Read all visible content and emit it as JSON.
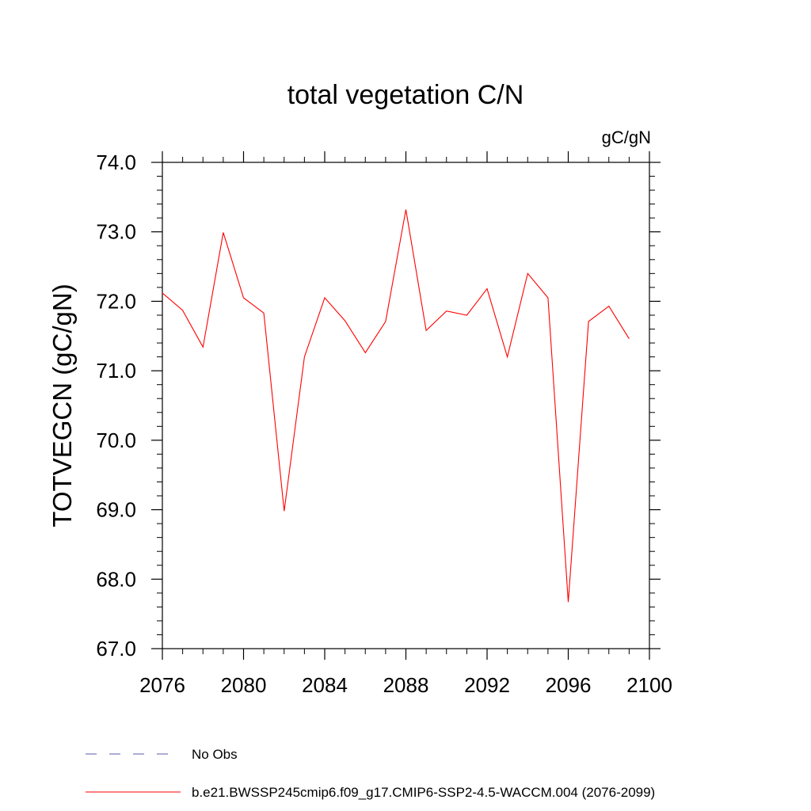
{
  "chart_data": {
    "type": "line",
    "title": "total vegetation C/N",
    "units": "gC/gN",
    "ylabel": "TOTVEGCN  (gC/gN)",
    "xlabel": "",
    "xlim": [
      2076,
      2100
    ],
    "ylim": [
      67.0,
      74.0
    ],
    "x_ticks": [
      2076,
      2080,
      2084,
      2088,
      2092,
      2096,
      2100
    ],
    "x_tick_labels": [
      "2076",
      "2080",
      "2084",
      "2088",
      "2092",
      "2096",
      "2100"
    ],
    "y_ticks": [
      67.0,
      68.0,
      69.0,
      70.0,
      71.0,
      72.0,
      73.0,
      74.0
    ],
    "y_tick_labels": [
      "67.0",
      "68.0",
      "69.0",
      "70.0",
      "71.0",
      "72.0",
      "73.0",
      "74.0"
    ],
    "grid": false,
    "legend_position": "bottom",
    "series": [
      {
        "name": "b.e21.BWSSP245cmip6.f09_g17.CMIP6-SSP2-4.5-WACCM.004 (2076-2099)",
        "color": "#ff0000",
        "style": "solid",
        "x": [
          2076,
          2077,
          2078,
          2079,
          2080,
          2081,
          2082,
          2083,
          2084,
          2085,
          2086,
          2087,
          2088,
          2089,
          2090,
          2091,
          2092,
          2093,
          2094,
          2095,
          2096,
          2097,
          2098,
          2099
        ],
        "values": [
          72.12,
          71.87,
          71.34,
          72.99,
          72.05,
          71.83,
          68.98,
          71.2,
          72.05,
          71.72,
          71.26,
          71.71,
          73.32,
          71.58,
          71.86,
          71.8,
          72.18,
          71.2,
          72.4,
          72.05,
          67.67,
          71.71,
          71.93,
          71.46
        ]
      }
    ],
    "legend": [
      {
        "label": "No Obs",
        "color": "#5a5aa8",
        "style": "dashed"
      },
      {
        "label": "b.e21.BWSSP245cmip6.f09_g17.CMIP6-SSP2-4.5-WACCM.004 (2076-2099)",
        "color": "#ff0000",
        "style": "solid"
      }
    ]
  }
}
